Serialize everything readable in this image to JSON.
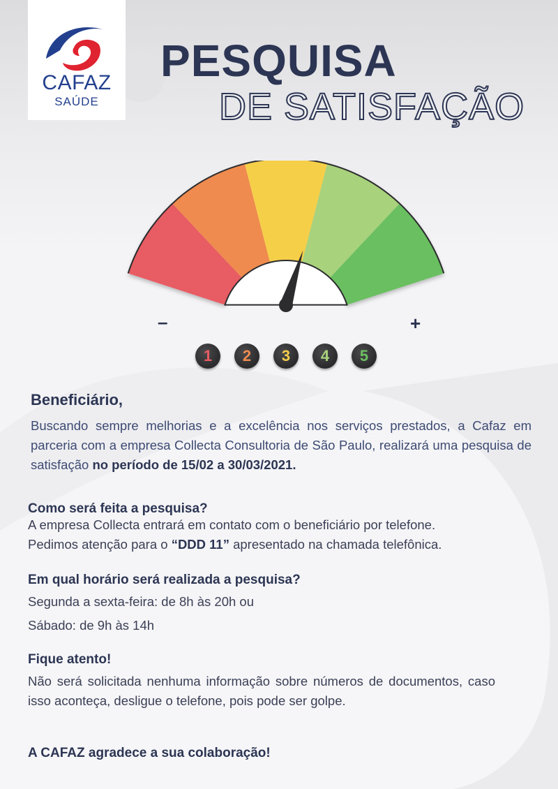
{
  "logo": {
    "name": "CAFAZ",
    "sub": "SAÚDE"
  },
  "title": {
    "main": "PESQUISA",
    "sub": "DE SATISFAÇÃO"
  },
  "gauge": {
    "colors": [
      "#e85b63",
      "#ef8b4f",
      "#f6cf4a",
      "#a8d27c",
      "#6bbf60"
    ],
    "needle_value": 3.6,
    "min_label": "–",
    "max_label": "+",
    "scale": [
      {
        "label": "1",
        "color": "#e85b63"
      },
      {
        "label": "2",
        "color": "#ef8b4f"
      },
      {
        "label": "3",
        "color": "#f6cf4a"
      },
      {
        "label": "4",
        "color": "#a8d27c"
      },
      {
        "label": "5",
        "color": "#6bbf60"
      }
    ]
  },
  "intro": {
    "greeting": "Beneficiário,",
    "text": "Buscando sempre melhorias e a excelência nos serviços prestados, a Cafaz em parceria com a empresa Collecta Consultoria de São Paulo, realizará uma pesquisa de satisfação ",
    "bold": "no período de 15/02 a 30/03/2021."
  },
  "section1": {
    "heading": "Como será feita a pesquisa?",
    "line1": "A empresa Collecta entrará em contato com o beneficiário por telefone.",
    "line2_pre": "Pedimos atenção para o ",
    "line2_bold": "“DDD 11”",
    "line2_post": " apresentado na chamada telefônica."
  },
  "section2": {
    "heading": "Em qual horário será realizada a pesquisa?",
    "line1": "Segunda a sexta-feira: de 8h às 20h ou",
    "line2": "Sábado: de 9h às 14h"
  },
  "section3": {
    "heading": "Fique atento!",
    "text": "Não será solicitada nenhuma informação sobre números de documentos, caso isso aconteça, desligue o telefone, pois pode ser golpe."
  },
  "thanks": "A CAFAZ agradece a sua colaboração!"
}
